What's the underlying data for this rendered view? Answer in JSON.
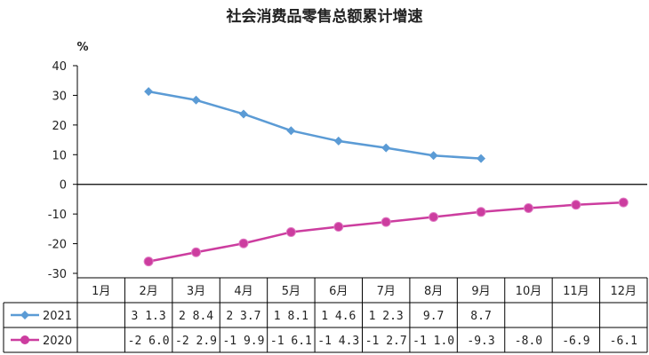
{
  "chart_data": {
    "type": "line",
    "title": "社会消费品零售总额累计增速",
    "unit_label": "%",
    "categories": [
      "1月",
      "2月",
      "3月",
      "4月",
      "5月",
      "6月",
      "7月",
      "8月",
      "9月",
      "10月",
      "11月",
      "12月"
    ],
    "ylim": [
      -30,
      40
    ],
    "yticks": [
      40,
      30,
      20,
      10,
      0,
      -10,
      -20,
      -30
    ],
    "grid": false,
    "legend": "data-table-left",
    "series": [
      {
        "name": "2021",
        "color": "#5B9BD5",
        "marker": "diamond",
        "values": [
          null,
          31.3,
          28.4,
          23.7,
          18.1,
          14.6,
          12.3,
          9.7,
          8.7,
          null,
          null,
          null
        ],
        "labels": [
          "",
          "31.3",
          "28.4",
          "23.7",
          "18.1",
          "14.6",
          "12.3",
          "9.7",
          "8.7",
          "",
          "",
          ""
        ]
      },
      {
        "name": "2020",
        "color": "#CC3D9F",
        "marker": "circle",
        "values": [
          null,
          -26.0,
          -22.9,
          -19.9,
          -16.1,
          -14.3,
          -12.7,
          -11.0,
          -9.3,
          -8.0,
          -6.9,
          -6.1
        ],
        "labels": [
          "",
          "-26.0",
          "-22.9",
          "-19.9",
          "-16.1",
          "-14.3",
          "-12.7",
          "-11.0",
          "-9.3",
          "-8.0",
          "-6.9",
          "-6.1"
        ]
      }
    ]
  }
}
